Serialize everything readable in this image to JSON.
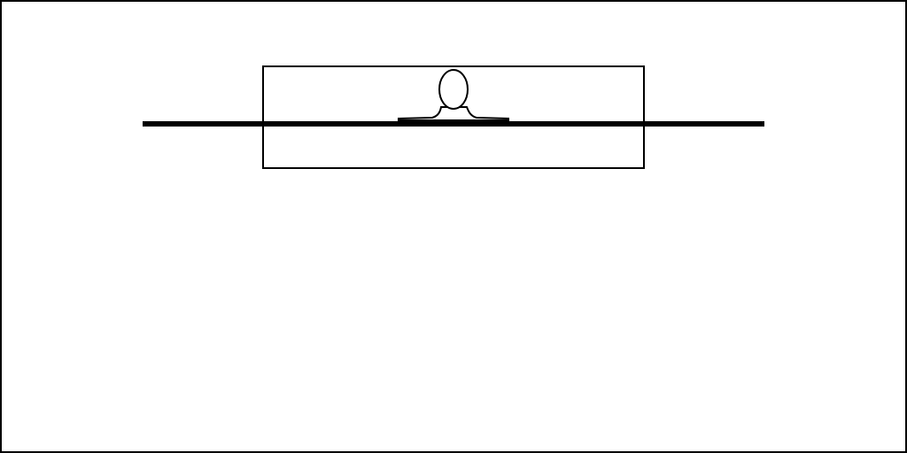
{
  "diagram": {
    "text_labels": [],
    "colors": {
      "background": "#ffffff",
      "stroke": "#000000"
    },
    "elements": [
      "outer-frame",
      "enclosure-box",
      "horizontal-line",
      "bulb-shape"
    ]
  }
}
